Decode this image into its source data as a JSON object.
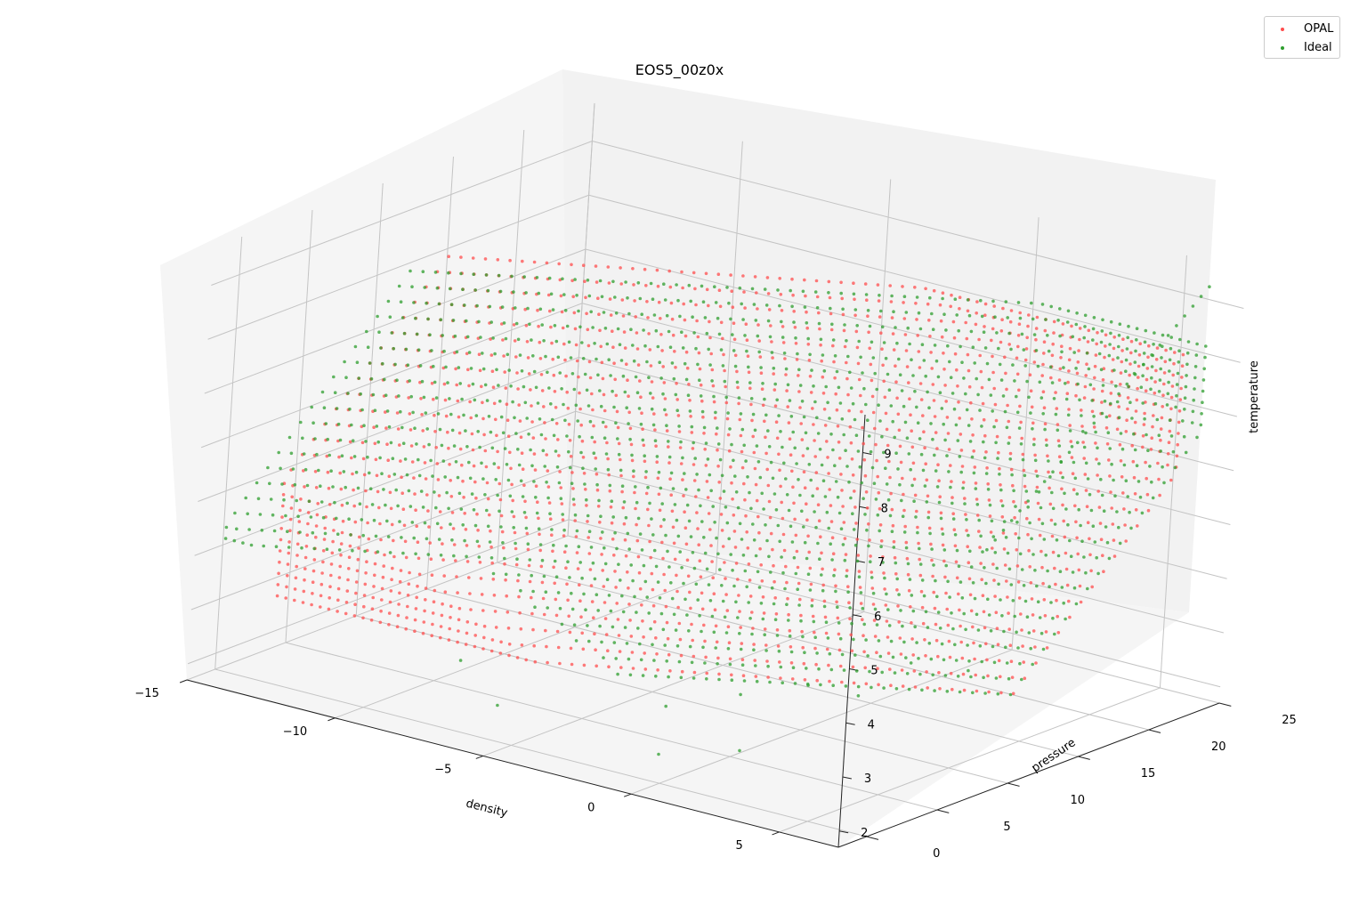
{
  "chart_data": {
    "type": "scatter",
    "projection": "3d",
    "title": "EOS5_00z0x",
    "xlabel": "density",
    "ylabel": "pressure",
    "zlabel": "temperature",
    "x_ticks": [
      "−15",
      "−10",
      "−5",
      "0",
      "5"
    ],
    "y_ticks": [
      "0",
      "5",
      "10",
      "15",
      "20",
      "25"
    ],
    "z_ticks": [
      "2",
      "3",
      "4",
      "5",
      "6",
      "7",
      "8",
      "9"
    ],
    "xlim": [
      -15,
      7
    ],
    "ylim": [
      -2,
      25
    ],
    "zlim": [
      1.7,
      9.7
    ],
    "grid": true,
    "legend_position": "top-right",
    "series": [
      {
        "name": "OPAL",
        "color": "#ff4d4d",
        "alpha": 0.7,
        "density_range": [
          -14,
          6
        ],
        "temperature_range": [
          3.0,
          8.2
        ],
        "pressure_range": [
          2,
          23
        ]
      },
      {
        "name": "Ideal",
        "color": "#2e9e2e",
        "alpha": 0.7,
        "density_range": [
          -14,
          6
        ],
        "temperature_range": [
          3.0,
          9.3
        ],
        "pressure_range": [
          -2,
          24.6
        ]
      }
    ]
  }
}
